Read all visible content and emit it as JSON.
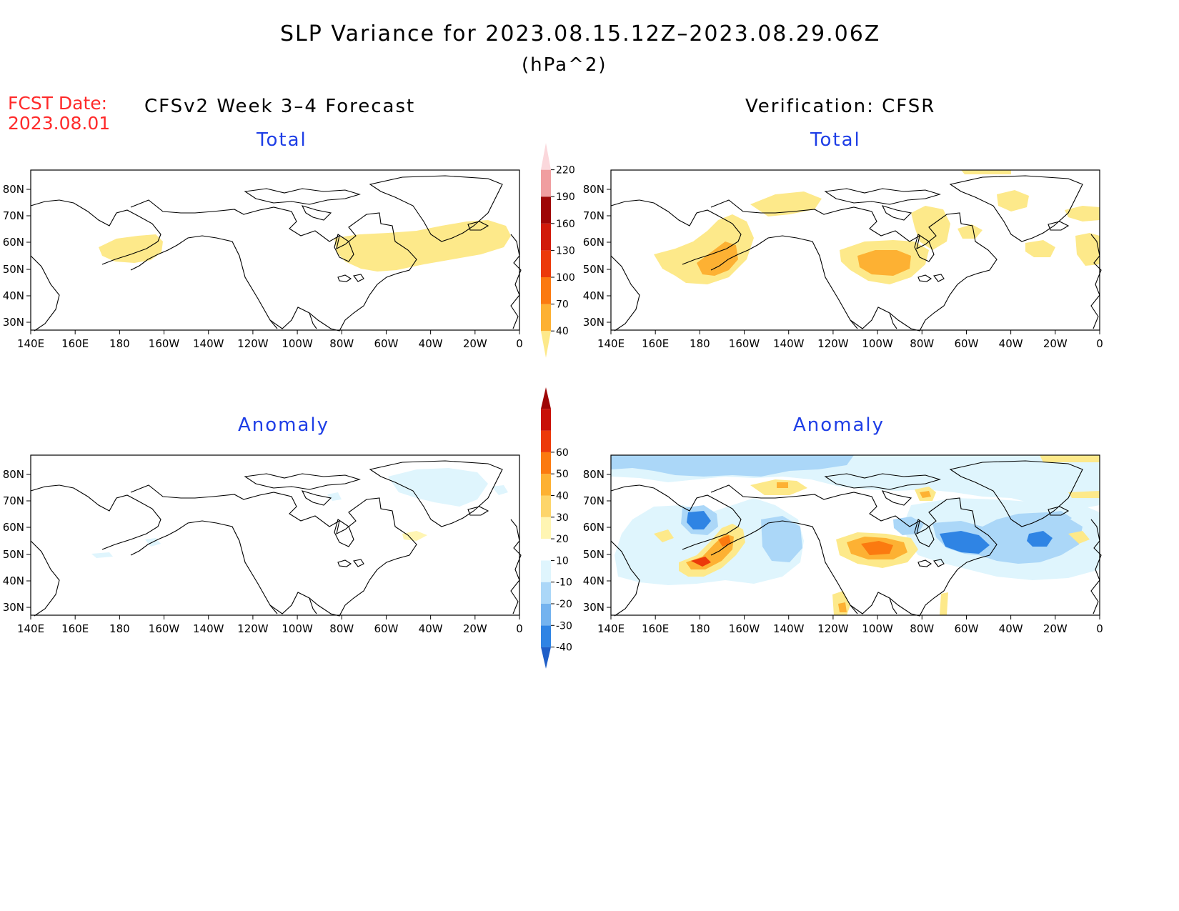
{
  "title": "SLP Variance for 2023.08.15.12Z–2023.08.29.06Z",
  "units": "(hPa^2)",
  "fcst_date_label": "FCST Date:",
  "fcst_date_value": "2023.08.01",
  "left_header": "CFSv2 Week 3–4 Forecast",
  "right_header": "Verification: CFSR",
  "panels": {
    "top_left_title": "Total",
    "top_right_title": "Total",
    "bottom_left_title": "Anomaly",
    "bottom_right_title": "Anomaly"
  },
  "axes": {
    "lat_labels": [
      "80N",
      "70N",
      "60N",
      "50N",
      "40N",
      "30N"
    ],
    "lon_labels": [
      "140E",
      "160E",
      "180",
      "160W",
      "140W",
      "120W",
      "100W",
      "80W",
      "60W",
      "40W",
      "20W",
      "0"
    ]
  },
  "colorbars": {
    "total": {
      "levels": [
        "40",
        "70",
        "100",
        "130",
        "160",
        "190",
        "220"
      ],
      "colors": [
        "#fde98a",
        "#fdb133",
        "#fb7a10",
        "#ec3a0a",
        "#d11a0a",
        "#9e0606",
        "#f09ea0",
        "#fbd8dc"
      ]
    },
    "anomaly": {
      "levels": [
        "-40",
        "-30",
        "-20",
        "-10",
        "10",
        "20",
        "30",
        "40",
        "50",
        "60"
      ],
      "colors": [
        "#1f5fc8",
        "#2f84e4",
        "#74b3ef",
        "#abd7f8",
        "#dff5fd",
        "#ffffff",
        "#fff5b3",
        "#fdd56b",
        "#fdb133",
        "#fb7a10",
        "#ec3a0a",
        "#c81008",
        "#9e0606"
      ]
    }
  },
  "colors": {
    "title_fcst": "#ff2a2a",
    "subtitle_blue": "#1e3ee6"
  }
}
